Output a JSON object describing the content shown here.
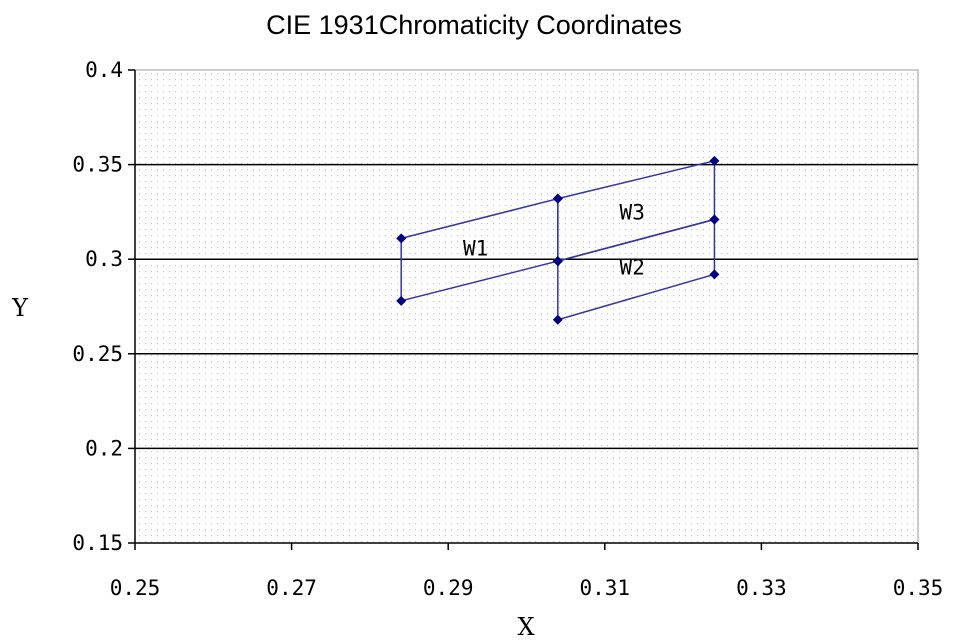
{
  "chart_data": {
    "type": "scatter",
    "title": "CIE 1931Chromaticity Coordinates",
    "xlabel": "X",
    "ylabel": "Y",
    "xlim": [
      0.25,
      0.35
    ],
    "ylim": [
      0.15,
      0.4
    ],
    "xticks": [
      "0.25",
      "0.27",
      "0.29",
      "0.31",
      "0.33",
      "0.35"
    ],
    "yticks": [
      "0.15",
      "0.2",
      "0.25",
      "0.3",
      "0.35",
      "0.4"
    ],
    "xtick_values": [
      0.25,
      0.27,
      0.29,
      0.31,
      0.33,
      0.35
    ],
    "ytick_values": [
      0.15,
      0.2,
      0.25,
      0.3,
      0.35,
      0.4
    ],
    "grid": "horizontal",
    "background_pattern": "dotted",
    "series": [
      {
        "label": "W1",
        "label_at": [
          0.2935,
          0.302
        ],
        "x": [
          0.284,
          0.304,
          0.304,
          0.284,
          0.284
        ],
        "y": [
          0.311,
          0.332,
          0.299,
          0.278,
          0.311
        ]
      },
      {
        "label": "W2",
        "label_at": [
          0.3135,
          0.292
        ],
        "x": [
          0.304,
          0.324,
          0.324,
          0.304,
          0.304
        ],
        "y": [
          0.299,
          0.321,
          0.292,
          0.268,
          0.299
        ]
      },
      {
        "label": "W3",
        "label_at": [
          0.3135,
          0.321
        ],
        "x": [
          0.304,
          0.324,
          0.324,
          0.304,
          0.304
        ],
        "y": [
          0.332,
          0.352,
          0.321,
          0.299,
          0.332
        ]
      }
    ],
    "colors": {
      "series_line": "#3333aa",
      "marker": "#000080",
      "gridline": "#000000",
      "plot_dots": "#c0c0c0"
    }
  }
}
